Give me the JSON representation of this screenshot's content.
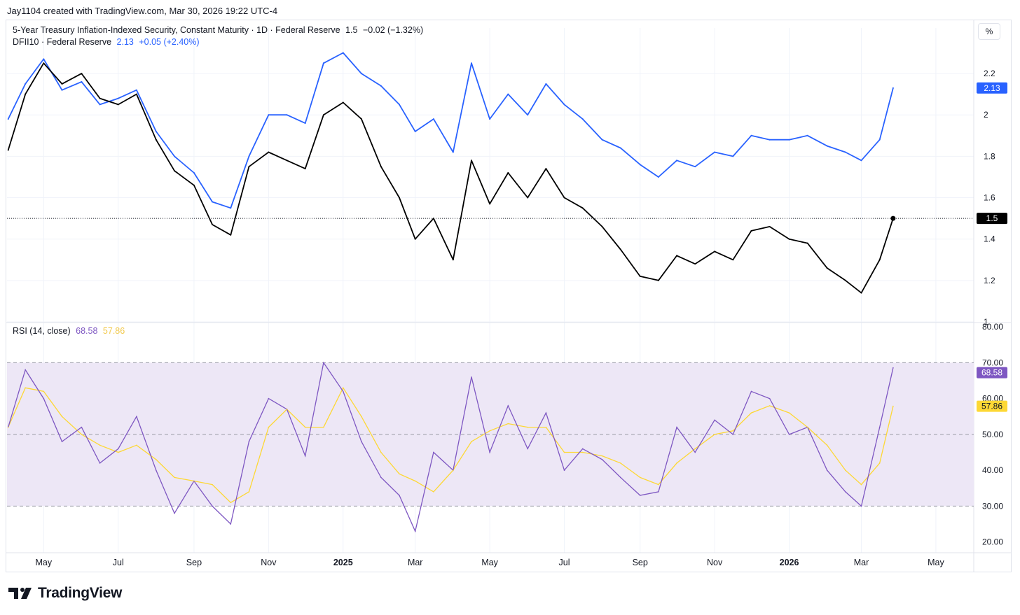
{
  "header": {
    "created_by": "Jay1104 created with TradingView.com, Mar 30, 2026 19:22 UTC-4"
  },
  "legend_main": {
    "title": "5-Year Treasury Inflation-Indexed Security, Constant Maturity · 1D · Federal Reserve",
    "value": "1.5",
    "change": "−0.02 (−1.32%)"
  },
  "legend_compare": {
    "title": "DFII10 · Federal Reserve",
    "value": "2.13",
    "change": "+0.05 (+2.40%)"
  },
  "legend_rsi": {
    "title": "RSI (14, close)",
    "rsi_value": "68.58",
    "ma_value": "57.86"
  },
  "scale_mode": "%",
  "footer": {
    "brand": "TradingView"
  },
  "colors": {
    "main": "#000000",
    "compare": "#2962ff",
    "rsi": "#7e57c2",
    "rsi_ma": "#fdd835",
    "rsi_band": "#ede7f6"
  },
  "chart_data": [
    {
      "type": "line",
      "name": "price-pane",
      "x_ticks": [
        "May",
        "Jul",
        "Sep",
        "Nov",
        "2025",
        "Mar",
        "May",
        "Jul",
        "Sep",
        "Nov",
        "2026",
        "Mar",
        "May"
      ],
      "y_ticks": [
        "2.2",
        "2",
        "1.8",
        "1.6",
        "1.4",
        "1.2",
        "1"
      ],
      "ylim": [
        1.0,
        2.42
      ],
      "last_value_labels": {
        "main": "1.5",
        "compare": "2.13"
      },
      "series": [
        {
          "name": "5-Year Treasury Inflation-Indexed Security, Constant Maturity",
          "x": [
            "2024-04-02",
            "2024-04-16",
            "2024-05-01",
            "2024-05-16",
            "2024-06-01",
            "2024-06-16",
            "2024-07-01",
            "2024-07-16",
            "2024-08-01",
            "2024-08-16",
            "2024-09-01",
            "2024-09-16",
            "2024-10-01",
            "2024-10-16",
            "2024-11-01",
            "2024-11-16",
            "2024-12-01",
            "2024-12-16",
            "2025-01-01",
            "2025-01-16",
            "2025-02-01",
            "2025-02-16",
            "2025-03-01",
            "2025-03-16",
            "2025-04-01",
            "2025-04-16",
            "2025-05-01",
            "2025-05-16",
            "2025-06-01",
            "2025-06-16",
            "2025-07-01",
            "2025-07-16",
            "2025-08-01",
            "2025-08-16",
            "2025-09-01",
            "2025-09-16",
            "2025-10-01",
            "2025-10-16",
            "2025-11-01",
            "2025-11-16",
            "2025-12-01",
            "2025-12-16",
            "2026-01-01",
            "2026-01-16",
            "2026-02-01",
            "2026-02-16",
            "2026-03-01",
            "2026-03-16",
            "2026-03-27"
          ],
          "values": [
            1.83,
            2.1,
            2.25,
            2.15,
            2.2,
            2.08,
            2.05,
            2.1,
            1.88,
            1.73,
            1.66,
            1.47,
            1.42,
            1.75,
            1.82,
            1.78,
            1.74,
            2.0,
            2.06,
            1.98,
            1.75,
            1.6,
            1.4,
            1.5,
            1.3,
            1.78,
            1.57,
            1.72,
            1.6,
            1.74,
            1.6,
            1.55,
            1.46,
            1.35,
            1.22,
            1.2,
            1.32,
            1.28,
            1.34,
            1.3,
            1.44,
            1.46,
            1.4,
            1.38,
            1.26,
            1.2,
            1.14,
            1.3,
            1.5
          ]
        },
        {
          "name": "DFII10",
          "x": [
            "2024-04-02",
            "2024-04-16",
            "2024-05-01",
            "2024-05-16",
            "2024-06-01",
            "2024-06-16",
            "2024-07-01",
            "2024-07-16",
            "2024-08-01",
            "2024-08-16",
            "2024-09-01",
            "2024-09-16",
            "2024-10-01",
            "2024-10-16",
            "2024-11-01",
            "2024-11-16",
            "2024-12-01",
            "2024-12-16",
            "2025-01-01",
            "2025-01-16",
            "2025-02-01",
            "2025-02-16",
            "2025-03-01",
            "2025-03-16",
            "2025-04-01",
            "2025-04-16",
            "2025-05-01",
            "2025-05-16",
            "2025-06-01",
            "2025-06-16",
            "2025-07-01",
            "2025-07-16",
            "2025-08-01",
            "2025-08-16",
            "2025-09-01",
            "2025-09-16",
            "2025-10-01",
            "2025-10-16",
            "2025-11-01",
            "2025-11-16",
            "2025-12-01",
            "2025-12-16",
            "2026-01-01",
            "2026-01-16",
            "2026-02-01",
            "2026-02-16",
            "2026-03-01",
            "2026-03-16",
            "2026-03-27"
          ],
          "values": [
            1.98,
            2.15,
            2.27,
            2.12,
            2.16,
            2.05,
            2.08,
            2.12,
            1.92,
            1.8,
            1.72,
            1.58,
            1.55,
            1.8,
            2.0,
            2.0,
            1.96,
            2.25,
            2.3,
            2.2,
            2.14,
            2.05,
            1.92,
            1.98,
            1.82,
            2.25,
            1.98,
            2.1,
            2.0,
            2.15,
            2.05,
            1.98,
            1.88,
            1.84,
            1.76,
            1.7,
            1.78,
            1.75,
            1.82,
            1.8,
            1.9,
            1.88,
            1.88,
            1.9,
            1.85,
            1.82,
            1.78,
            1.88,
            2.13
          ]
        }
      ]
    },
    {
      "type": "line",
      "name": "rsi-pane",
      "title": "RSI (14, close)",
      "x_ticks": [
        "May",
        "Jul",
        "Sep",
        "Nov",
        "2025",
        "Mar",
        "May",
        "Jul",
        "Sep",
        "Nov",
        "2026",
        "Mar",
        "May"
      ],
      "y_ticks": [
        "80.00",
        "70.00",
        "60.00",
        "50.00",
        "40.00",
        "30.00",
        "20.00"
      ],
      "ylim": [
        17,
        81
      ],
      "bands": [
        30,
        50,
        70
      ],
      "last_value_labels": {
        "rsi": "68.58",
        "ma": "57.86"
      },
      "series": [
        {
          "name": "RSI",
          "x": [
            "2024-04-02",
            "2024-04-16",
            "2024-05-01",
            "2024-05-16",
            "2024-06-01",
            "2024-06-16",
            "2024-07-01",
            "2024-07-16",
            "2024-08-01",
            "2024-08-16",
            "2024-09-01",
            "2024-09-16",
            "2024-10-01",
            "2024-10-16",
            "2024-11-01",
            "2024-11-16",
            "2024-12-01",
            "2024-12-16",
            "2025-01-01",
            "2025-01-16",
            "2025-02-01",
            "2025-02-16",
            "2025-03-01",
            "2025-03-16",
            "2025-04-01",
            "2025-04-16",
            "2025-05-01",
            "2025-05-16",
            "2025-06-01",
            "2025-06-16",
            "2025-07-01",
            "2025-07-16",
            "2025-08-01",
            "2025-08-16",
            "2025-09-01",
            "2025-09-16",
            "2025-10-01",
            "2025-10-16",
            "2025-11-01",
            "2025-11-16",
            "2025-12-01",
            "2025-12-16",
            "2026-01-01",
            "2026-01-16",
            "2026-02-01",
            "2026-02-16",
            "2026-03-01",
            "2026-03-16",
            "2026-03-27"
          ],
          "values": [
            52,
            68,
            60,
            48,
            52,
            42,
            46,
            55,
            40,
            28,
            37,
            30,
            25,
            48,
            60,
            57,
            44,
            70,
            62,
            48,
            38,
            33,
            23,
            45,
            40,
            66,
            45,
            58,
            46,
            56,
            40,
            46,
            43,
            38,
            33,
            34,
            52,
            45,
            54,
            50,
            62,
            60,
            50,
            52,
            40,
            34,
            30,
            52,
            68.58
          ]
        },
        {
          "name": "RSI-based MA",
          "x": [
            "2024-04-02",
            "2024-04-16",
            "2024-05-01",
            "2024-05-16",
            "2024-06-01",
            "2024-06-16",
            "2024-07-01",
            "2024-07-16",
            "2024-08-01",
            "2024-08-16",
            "2024-09-01",
            "2024-09-16",
            "2024-10-01",
            "2024-10-16",
            "2024-11-01",
            "2024-11-16",
            "2024-12-01",
            "2024-12-16",
            "2025-01-01",
            "2025-01-16",
            "2025-02-01",
            "2025-02-16",
            "2025-03-01",
            "2025-03-16",
            "2025-04-01",
            "2025-04-16",
            "2025-05-01",
            "2025-05-16",
            "2025-06-01",
            "2025-06-16",
            "2025-07-01",
            "2025-07-16",
            "2025-08-01",
            "2025-08-16",
            "2025-09-01",
            "2025-09-16",
            "2025-10-01",
            "2025-10-16",
            "2025-11-01",
            "2025-11-16",
            "2025-12-01",
            "2025-12-16",
            "2026-01-01",
            "2026-01-16",
            "2026-02-01",
            "2026-02-16",
            "2026-03-01",
            "2026-03-16",
            "2026-03-27"
          ],
          "values": [
            52,
            63,
            62,
            55,
            50,
            47,
            45,
            47,
            43,
            38,
            37,
            36,
            31,
            34,
            52,
            57,
            52,
            52,
            63,
            55,
            45,
            39,
            37,
            34,
            40,
            48,
            51,
            53,
            52,
            52,
            45,
            45,
            44,
            42,
            38,
            36,
            42,
            46,
            50,
            51,
            56,
            58,
            56,
            52,
            47,
            40,
            36,
            42,
            57.86
          ]
        }
      ]
    }
  ]
}
